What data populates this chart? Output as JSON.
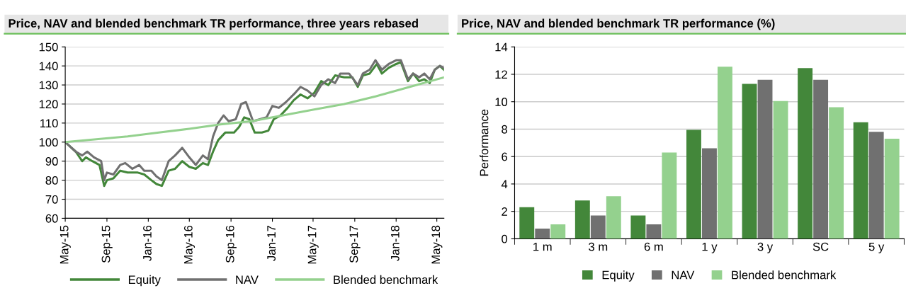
{
  "chart_data": [
    {
      "type": "line",
      "title": "Price, NAV and blended benchmark TR performance, three years rebased",
      "legend": "bottom",
      "grid": "y",
      "xlim": [
        "2015-05-01",
        "2018-05-22"
      ],
      "ylim": [
        60,
        150
      ],
      "yticks": [
        60,
        70,
        80,
        90,
        100,
        110,
        120,
        130,
        140,
        150
      ],
      "xticks": [
        {
          "value": "2015-05-01",
          "label": "May-15"
        },
        {
          "value": "2015-09-01",
          "label": "Sep-15"
        },
        {
          "value": "2016-01-01",
          "label": "Jan-16"
        },
        {
          "value": "2016-05-01",
          "label": "May-16"
        },
        {
          "value": "2016-09-01",
          "label": "Sep-16"
        },
        {
          "value": "2017-01-01",
          "label": "Jan-17"
        },
        {
          "value": "2017-05-01",
          "label": "May-17"
        },
        {
          "value": "2017-09-01",
          "label": "Sep-17"
        },
        {
          "value": "2018-01-01",
          "label": "Jan-18"
        },
        {
          "value": "2018-05-01",
          "label": "May-18"
        }
      ],
      "series": [
        {
          "name": "Equity",
          "color": "#43873a",
          "x": [
            "2015-05-01",
            "2015-06-01",
            "2015-06-20",
            "2015-07-01",
            "2015-07-20",
            "2015-08-10",
            "2015-08-24",
            "2015-09-01",
            "2015-09-20",
            "2015-10-10",
            "2015-11-01",
            "2015-12-01",
            "2015-12-20",
            "2016-01-10",
            "2016-01-25",
            "2016-02-10",
            "2016-03-01",
            "2016-03-20",
            "2016-04-10",
            "2016-05-01",
            "2016-05-20",
            "2016-06-10",
            "2016-06-25",
            "2016-07-10",
            "2016-07-25",
            "2016-08-15",
            "2016-09-10",
            "2016-09-25",
            "2016-10-10",
            "2016-10-25",
            "2016-11-10",
            "2016-12-01",
            "2016-12-20",
            "2017-01-05",
            "2017-01-25",
            "2017-02-15",
            "2017-03-05",
            "2017-03-25",
            "2017-04-15",
            "2017-05-05",
            "2017-05-25",
            "2017-06-15",
            "2017-07-05",
            "2017-08-01",
            "2017-08-25",
            "2017-09-10",
            "2017-09-25",
            "2017-10-15",
            "2017-11-05",
            "2017-11-20",
            "2017-12-10",
            "2018-01-01",
            "2018-01-15",
            "2018-02-05",
            "2018-02-20",
            "2018-03-10",
            "2018-03-25",
            "2018-04-10",
            "2018-04-25",
            "2018-05-10",
            "2018-05-22"
          ],
          "values": [
            100,
            95,
            90,
            92,
            90,
            88,
            77,
            80,
            81,
            85,
            84,
            84,
            83,
            80,
            78,
            77,
            85,
            86,
            90,
            87,
            86,
            89,
            88,
            95,
            101,
            105,
            105,
            108,
            113,
            112,
            105,
            105,
            106,
            112,
            114,
            118,
            122,
            125,
            123,
            126,
            132,
            130,
            135,
            134,
            134,
            129,
            135,
            136,
            141,
            136,
            139,
            141,
            142,
            132,
            136,
            132,
            133,
            131,
            138,
            140,
            138
          ]
        },
        {
          "name": "NAV",
          "color": "#707070",
          "x": [
            "2015-05-01",
            "2015-06-01",
            "2015-06-20",
            "2015-07-05",
            "2015-07-25",
            "2015-08-15",
            "2015-08-24",
            "2015-09-01",
            "2015-09-20",
            "2015-10-10",
            "2015-10-25",
            "2015-11-15",
            "2015-12-05",
            "2015-12-20",
            "2016-01-10",
            "2016-01-25",
            "2016-02-10",
            "2016-03-01",
            "2016-03-20",
            "2016-04-10",
            "2016-05-01",
            "2016-05-20",
            "2016-06-10",
            "2016-06-25",
            "2016-07-10",
            "2016-07-25",
            "2016-08-10",
            "2016-08-25",
            "2016-09-15",
            "2016-10-01",
            "2016-10-15",
            "2016-11-05",
            "2016-11-25",
            "2016-12-15",
            "2017-01-01",
            "2017-01-20",
            "2017-02-10",
            "2017-03-10",
            "2017-03-25",
            "2017-04-15",
            "2017-05-05",
            "2017-05-25",
            "2017-06-15",
            "2017-07-05",
            "2017-07-20",
            "2017-08-15",
            "2017-09-10",
            "2017-09-25",
            "2017-10-15",
            "2017-11-01",
            "2017-11-20",
            "2017-12-10",
            "2018-01-01",
            "2018-01-15",
            "2018-02-05",
            "2018-02-20",
            "2018-03-10",
            "2018-03-25",
            "2018-04-10",
            "2018-04-25",
            "2018-05-10",
            "2018-05-22"
          ],
          "values": [
            100,
            95,
            93,
            95,
            92,
            90,
            80,
            84,
            83,
            88,
            89,
            86,
            88,
            85,
            85,
            82,
            80,
            90,
            93,
            97,
            92,
            88,
            93,
            91,
            103,
            110,
            114,
            111,
            112,
            120,
            121,
            111,
            112,
            113,
            119,
            118,
            121,
            126,
            129,
            127,
            124,
            130,
            133,
            131,
            136,
            136,
            130,
            136,
            138,
            143,
            138,
            141,
            143,
            143,
            133,
            136,
            134,
            136,
            133,
            138,
            140,
            139
          ]
        },
        {
          "name": "Blended benchmark",
          "color": "#94d18e",
          "x": [
            "2015-05-01",
            "2015-11-01",
            "2016-02-01",
            "2016-05-01",
            "2016-08-01",
            "2016-11-01",
            "2017-02-01",
            "2017-05-01",
            "2017-08-01",
            "2017-11-01",
            "2018-02-01",
            "2018-05-22"
          ],
          "values": [
            100,
            103,
            105,
            107,
            109.3,
            111,
            114,
            117,
            120,
            124,
            128.5,
            134
          ]
        }
      ]
    },
    {
      "type": "bar",
      "title": "Price, NAV and blended benchmark TR performance (%)",
      "ylabel": "Performance",
      "legend": "bottom",
      "grid": "y",
      "ylim": [
        0,
        14
      ],
      "yticks": [
        0,
        2,
        4,
        6,
        8,
        10,
        12,
        14
      ],
      "categories": [
        "1 m",
        "3 m",
        "6 m",
        "1 y",
        "3 y",
        "SC",
        "5 y"
      ],
      "series": [
        {
          "name": "Equity",
          "color": "#43873a",
          "values": [
            2.3,
            2.8,
            1.7,
            7.95,
            11.3,
            12.45,
            8.5
          ]
        },
        {
          "name": "NAV",
          "color": "#707070",
          "values": [
            0.75,
            1.7,
            1.05,
            6.6,
            11.6,
            11.6,
            7.8
          ]
        },
        {
          "name": "Blended benchmark",
          "color": "#94d18e",
          "values": [
            1.05,
            3.1,
            6.3,
            12.55,
            10.05,
            9.6,
            7.3
          ]
        }
      ]
    }
  ]
}
